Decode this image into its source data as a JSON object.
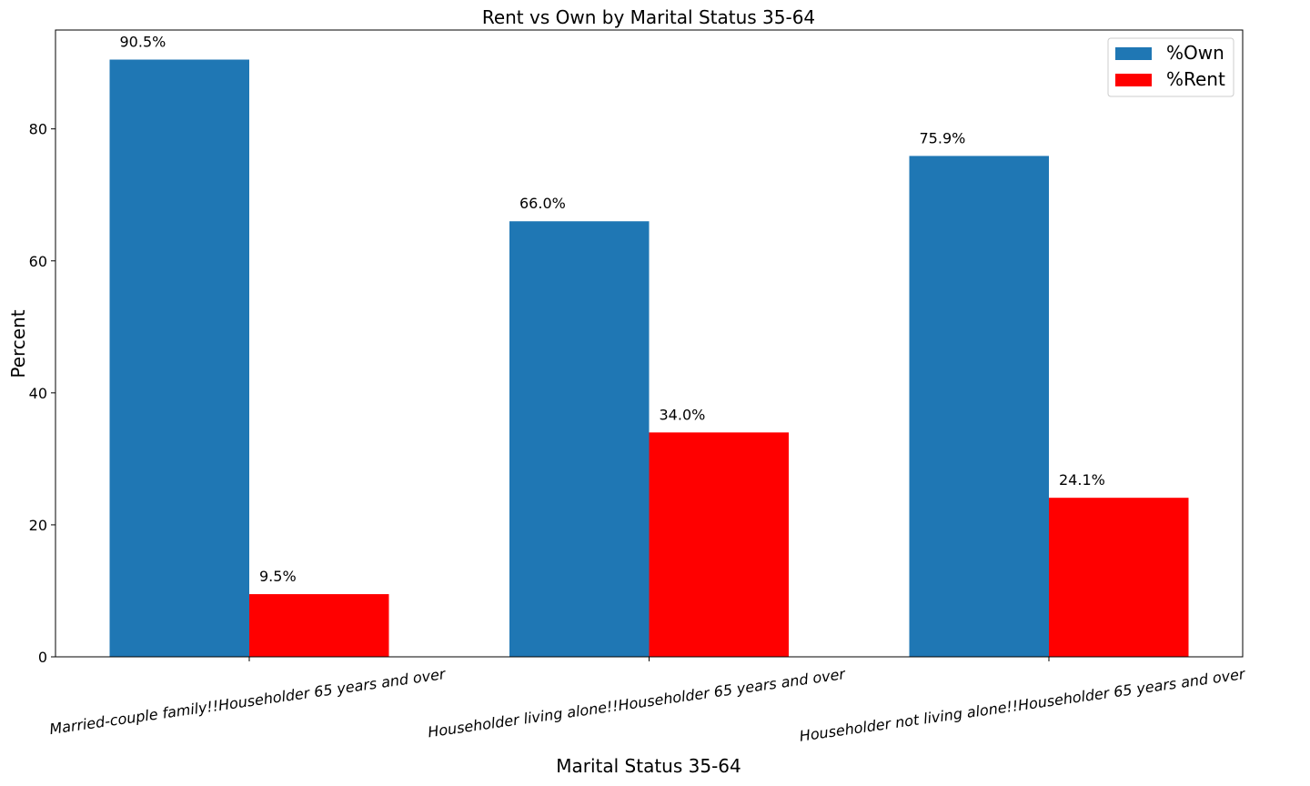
{
  "chart_data": {
    "type": "bar",
    "title": "Rent vs Own by Marital Status 35-64",
    "xlabel": "Marital Status 35-64",
    "ylabel": "Percent",
    "categories": [
      "Married-couple family!!Householder 65 years and over",
      "Householder living alone!!Householder 65 years and over",
      "Householder not living alone!!Householder 65 years and over"
    ],
    "series": [
      {
        "name": "%Own",
        "color": "#1f77b4",
        "values": [
          90.5,
          66.0,
          75.9
        ],
        "labels": [
          "90.5%",
          "66.0%",
          "75.9%"
        ]
      },
      {
        "name": "%Rent",
        "color": "#ff0000",
        "values": [
          9.5,
          34.0,
          24.1
        ],
        "labels": [
          "9.5%",
          "34.0%",
          "24.1%"
        ]
      }
    ],
    "yticks": [
      0,
      20,
      40,
      60,
      80
    ],
    "ylim": [
      0,
      95
    ],
    "grid": false,
    "legend_position": "top-right"
  }
}
